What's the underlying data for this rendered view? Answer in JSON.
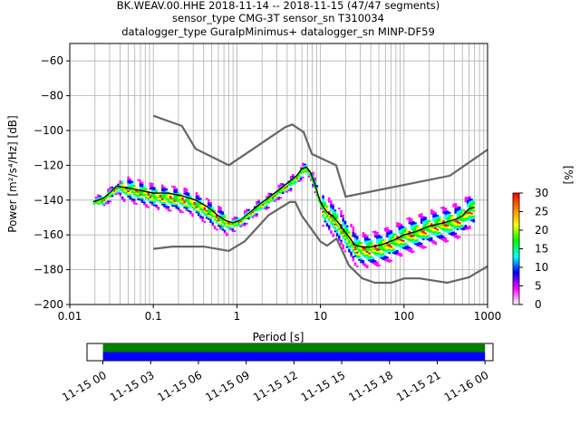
{
  "title": {
    "line1": "BK.WEAV.00.HHE   2018-11-14 -- 2018-11-15  (47/47 segments)",
    "line2": "sensor_type CMG-3T sensor_sn T310034",
    "line3": "datalogger_type GuralpMinimus+ datalogger_sn MINP-DF59"
  },
  "chart_data": [
    {
      "type": "heatmap",
      "title": "",
      "xlabel": "Period [s]",
      "ylabel": "Power [m²/s⁴/Hz] [dB]",
      "xscale": "log",
      "xlim": [
        0.01,
        1000
      ],
      "ylim": [
        -200,
        -50
      ],
      "grid": true,
      "x_tick_labels": [
        "0.01",
        "0.1",
        "1",
        "10",
        "100",
        "1000"
      ],
      "x_ticks": [
        0.01,
        0.1,
        1,
        10,
        100,
        1000
      ],
      "y_ticks": [
        -60,
        -80,
        -100,
        -120,
        -140,
        -160,
        -180,
        -200
      ],
      "y_tick_labels": [
        "−60",
        "−80",
        "−100",
        "−120",
        "−140",
        "−160",
        "−180",
        "−200"
      ],
      "colorbar": {
        "label": "[%]",
        "ticks": [
          0,
          5,
          10,
          15,
          20,
          25,
          30
        ],
        "range": [
          0,
          30
        ],
        "colors": [
          "#ffffff",
          "#ff00ff",
          "#0000ff",
          "#00ffff",
          "#00ff00",
          "#ffff00",
          "#ff0000"
        ]
      },
      "series": [
        {
          "role": "new-high-noise-model",
          "color": "#666666",
          "x": [
            0.1,
            0.22,
            0.32,
            0.8,
            3.8,
            4.6,
            6.3,
            7.9,
            15.4,
            20,
            354,
            1000
          ],
          "y": [
            -91.5,
            -97.4,
            -110.5,
            -120,
            -98,
            -96.5,
            -101,
            -113.5,
            -120,
            -138,
            -126,
            -111
          ]
        },
        {
          "role": "new-low-noise-model",
          "color": "#666666",
          "x": [
            0.1,
            0.17,
            0.4,
            0.8,
            1.24,
            2.4,
            4.3,
            5,
            6,
            10,
            12,
            15.6,
            21.9,
            31.6,
            45,
            70,
            101,
            154,
            328,
            600,
            1000
          ],
          "y": [
            -168,
            -166.7,
            -166.7,
            -169.2,
            -163.7,
            -148.6,
            -141.1,
            -141.1,
            -149,
            -163.8,
            -166.2,
            -162.1,
            -177.5,
            -185,
            -187.5,
            -187.5,
            -185,
            -185,
            -187.5,
            -184.4,
            -178
          ]
        },
        {
          "role": "mean-psd",
          "color": "#000000",
          "x": [
            0.019,
            0.025,
            0.03,
            0.036,
            0.05,
            0.07,
            0.1,
            0.15,
            0.22,
            0.32,
            0.45,
            0.6,
            0.75,
            0.9,
            1.1,
            1.4,
            1.8,
            2.4,
            3.2,
            4.2,
            5.2,
            6,
            6.8,
            7.6,
            8.6,
            9.6,
            10.5,
            12,
            14,
            17,
            21,
            26,
            32,
            40,
            55,
            75,
            100,
            140,
            200,
            300,
            420,
            500,
            600,
            700
          ],
          "y": [
            -141,
            -139,
            -136,
            -132,
            -133,
            -134.5,
            -136,
            -136,
            -137.5,
            -140,
            -144,
            -149,
            -152,
            -153,
            -151.5,
            -147.5,
            -143,
            -138.5,
            -134,
            -129.5,
            -126,
            -122,
            -121,
            -124,
            -131,
            -139,
            -143,
            -147,
            -149,
            -154,
            -160,
            -166,
            -167,
            -167,
            -165.5,
            -163,
            -160,
            -158,
            -155,
            -153,
            -151,
            -149,
            -145,
            -144
          ]
        },
        {
          "role": "mode-psd",
          "color": "#00ff00",
          "x": [
            0.019,
            0.025,
            0.03,
            0.036,
            0.05,
            0.07,
            0.1,
            0.15,
            0.22,
            0.32,
            0.45,
            0.6,
            0.75,
            0.9,
            1.1,
            1.4,
            1.8,
            2.4,
            3.2,
            4.2,
            5.2,
            6,
            6.8,
            7.6,
            8.6,
            9.6,
            10.5,
            12,
            14,
            17,
            21,
            26,
            32,
            40,
            55,
            75,
            100,
            140,
            200,
            300,
            420,
            500,
            600,
            700
          ],
          "y": [
            -142,
            -140,
            -136.5,
            -133,
            -134,
            -136,
            -138,
            -139,
            -140,
            -143,
            -147,
            -151,
            -153.5,
            -154,
            -152,
            -148,
            -144,
            -140,
            -135,
            -131,
            -127,
            -123,
            -122,
            -126,
            -133,
            -140.5,
            -145,
            -148.5,
            -151,
            -156,
            -162,
            -168,
            -169,
            -168.5,
            -167,
            -164,
            -161,
            -159,
            -156,
            -154,
            -152,
            -150,
            -146,
            -145
          ]
        }
      ]
    },
    {
      "type": "timeline",
      "x_tick_labels": [
        "11-15 00",
        "11-15 03",
        "11-15 06",
        "11-15 09",
        "11-15 12",
        "11-15 15",
        "11-15 18",
        "11-15 21",
        "11-16 00"
      ],
      "xlim_hours": [
        -1,
        24.5
      ],
      "data_coverage": [
        0,
        24
      ],
      "processed_coverage": [
        0,
        24
      ],
      "data_color": "#008000",
      "processed_color": "#0000ff"
    }
  ]
}
